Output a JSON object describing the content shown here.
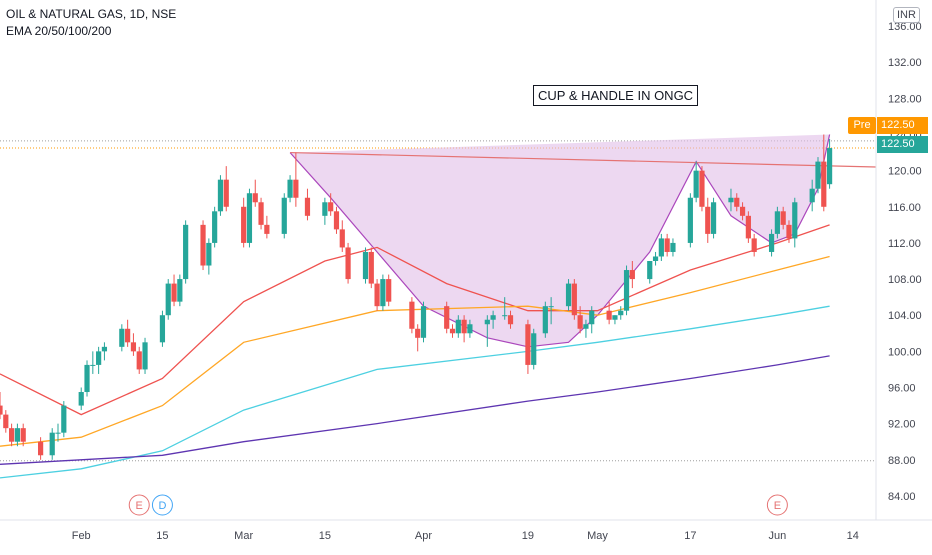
{
  "header": {
    "symbol_line": "OIL & NATURAL GAS, 1D, NSE",
    "indicator_line": "EMA 20/50/100/200"
  },
  "currency": "INR",
  "annotation": "CUP & HANDLE IN ONGC",
  "price_tags": {
    "pre_label": "Pre",
    "pre_price": "122.50",
    "last_price": "122.50"
  },
  "events": [
    {
      "label": "E",
      "date": "2021-02-11",
      "color": "#e57373"
    },
    {
      "label": "D",
      "date": "2021-02-15",
      "color": "#42a5f5"
    },
    {
      "label": "E",
      "date": "2021-06-01",
      "color": "#e57373"
    }
  ],
  "colors": {
    "up": "#26a69a",
    "down": "#ef5350",
    "ema20": "#ef5350",
    "ema50": "#ffa726",
    "ema100": "#4dd0e1",
    "ema200": "#5e35b1",
    "cup_fill": "#e1bee7",
    "cup_line": "#ab47bc",
    "neckline": "#e57373",
    "pre": "#ff9800",
    "last": "#26a69a"
  },
  "chart_data": {
    "type": "candlestick",
    "y_axis": {
      "range": [
        82,
        138
      ],
      "ticks": [
        "84.00",
        "88.00",
        "92.00",
        "96.00",
        "100.00",
        "104.00",
        "108.00",
        "112.00",
        "116.00",
        "120.00",
        "124.00",
        "128.00",
        "132.00",
        "136.00"
      ]
    },
    "x_axis": {
      "start": "2021-01-18",
      "end": "2021-06-18",
      "ticks": [
        {
          "label": "Feb",
          "date": "2021-02-01"
        },
        {
          "label": "15",
          "date": "2021-02-15"
        },
        {
          "label": "Mar",
          "date": "2021-03-01"
        },
        {
          "label": "15",
          "date": "2021-03-15"
        },
        {
          "label": "Apr",
          "date": "2021-04-01"
        },
        {
          "label": "19",
          "date": "2021-04-19"
        },
        {
          "label": "May",
          "date": "2021-05-01"
        },
        {
          "label": "17",
          "date": "2021-05-17"
        },
        {
          "label": "Jun",
          "date": "2021-06-01"
        },
        {
          "label": "14",
          "date": "2021-06-14"
        }
      ]
    },
    "grid": false,
    "candles": [
      [
        "2021-01-18",
        94,
        95.5,
        92.5,
        93
      ],
      [
        "2021-01-19",
        93,
        93.5,
        91,
        91.5
      ],
      [
        "2021-01-20",
        91.5,
        92,
        89.5,
        90
      ],
      [
        "2021-01-21",
        90,
        92,
        89.5,
        91.5
      ],
      [
        "2021-01-22",
        91.5,
        92,
        89.5,
        90
      ],
      [
        "2021-01-25",
        90,
        90.5,
        88,
        88.5
      ],
      [
        "2021-01-27",
        88.5,
        91.5,
        88,
        91
      ],
      [
        "2021-01-28",
        91,
        92,
        90,
        91
      ],
      [
        "2021-01-29",
        91,
        94.5,
        90.5,
        94
      ],
      [
        "2021-02-01",
        94,
        96,
        93.5,
        95.5
      ],
      [
        "2021-02-02",
        95.5,
        99,
        95,
        98.5
      ],
      [
        "2021-02-03",
        98.5,
        100,
        97.5,
        98.5
      ],
      [
        "2021-02-04",
        98.5,
        100.5,
        97.5,
        100
      ],
      [
        "2021-02-05",
        100,
        101,
        99,
        100.5
      ],
      [
        "2021-02-08",
        100.5,
        103,
        100,
        102.5
      ],
      [
        "2021-02-09",
        102.5,
        103.5,
        100.5,
        101
      ],
      [
        "2021-02-10",
        101,
        102,
        99.5,
        100
      ],
      [
        "2021-02-11",
        100,
        100.5,
        97.5,
        98
      ],
      [
        "2021-02-12",
        98,
        101.5,
        97.5,
        101
      ],
      [
        "2021-02-15",
        101,
        104.5,
        100.5,
        104
      ],
      [
        "2021-02-16",
        104,
        108,
        103.5,
        107.5
      ],
      [
        "2021-02-17",
        107.5,
        108.5,
        105,
        105.5
      ],
      [
        "2021-02-18",
        105.5,
        108.5,
        105,
        108
      ],
      [
        "2021-02-19",
        108,
        114.5,
        107.5,
        114
      ],
      [
        "2021-02-22",
        114,
        114.5,
        109,
        109.5
      ],
      [
        "2021-02-23",
        109.5,
        112.5,
        108.5,
        112
      ],
      [
        "2021-02-24",
        112,
        116,
        111.5,
        115.5
      ],
      [
        "2021-02-25",
        115.5,
        119.5,
        115,
        119
      ],
      [
        "2021-02-26",
        119,
        120.5,
        115.5,
        116
      ],
      [
        "2021-03-01",
        116,
        117,
        111.5,
        112
      ],
      [
        "2021-03-02",
        112,
        118,
        111.5,
        117.5
      ],
      [
        "2021-03-03",
        117.5,
        119,
        116,
        116.5
      ],
      [
        "2021-03-04",
        116.5,
        117,
        113.5,
        114
      ],
      [
        "2021-03-05",
        114,
        115,
        112.5,
        113
      ],
      [
        "2021-03-08",
        113,
        117.5,
        112.5,
        117
      ],
      [
        "2021-03-09",
        117,
        119.5,
        116.5,
        119
      ],
      [
        "2021-03-10",
        119,
        122,
        116,
        117
      ],
      [
        "2021-03-12",
        117,
        118,
        114.5,
        115
      ],
      [
        "2021-03-15",
        115,
        117,
        114,
        116.5
      ],
      [
        "2021-03-16",
        116.5,
        117.5,
        115,
        115.5
      ],
      [
        "2021-03-17",
        115.5,
        116,
        113,
        113.5
      ],
      [
        "2021-03-18",
        113.5,
        114.5,
        111,
        111.5
      ],
      [
        "2021-03-19",
        111.5,
        112,
        107.5,
        108
      ],
      [
        "2021-03-22",
        108,
        111.5,
        107.5,
        111
      ],
      [
        "2021-03-23",
        111,
        111.5,
        107,
        107.5
      ],
      [
        "2021-03-24",
        107.5,
        108,
        104.5,
        105
      ],
      [
        "2021-03-25",
        105,
        108.5,
        104.5,
        108
      ],
      [
        "2021-03-26",
        108,
        108.5,
        105,
        105.5
      ],
      [
        "2021-03-30",
        105.5,
        106,
        102,
        102.5
      ],
      [
        "2021-03-31",
        102.5,
        103,
        100,
        101.5
      ],
      [
        "2021-04-01",
        101.5,
        105.5,
        101,
        105
      ],
      [
        "2021-04-05",
        105,
        105.5,
        102,
        102.5
      ],
      [
        "2021-04-06",
        102.5,
        103,
        101.5,
        102
      ],
      [
        "2021-04-07",
        102,
        104,
        101.5,
        103.5
      ],
      [
        "2021-04-08",
        103.5,
        104,
        101,
        102
      ],
      [
        "2021-04-09",
        102,
        103.5,
        101.5,
        103
      ],
      [
        "2021-04-12",
        103,
        104,
        100.5,
        103.5
      ],
      [
        "2021-04-13",
        103.5,
        104.5,
        102.5,
        104
      ],
      [
        "2021-04-15",
        104,
        106,
        103.5,
        104
      ],
      [
        "2021-04-16",
        104,
        104.5,
        102.5,
        103
      ],
      [
        "2021-04-19",
        103,
        103.5,
        97.5,
        98.5
      ],
      [
        "2021-04-20",
        98.5,
        102.5,
        98,
        102
      ],
      [
        "2021-04-22",
        102,
        105.5,
        101.5,
        105
      ],
      [
        "2021-04-23",
        105,
        106,
        103,
        105
      ],
      [
        "2021-04-26",
        105,
        108,
        104.5,
        107.5
      ],
      [
        "2021-04-27",
        107.5,
        108,
        103.5,
        104
      ],
      [
        "2021-04-28",
        104,
        105,
        102,
        102.5
      ],
      [
        "2021-04-29",
        102.5,
        103.5,
        101.5,
        103
      ],
      [
        "2021-04-30",
        103,
        105,
        102,
        104.5
      ],
      [
        "2021-05-03",
        104.5,
        105.5,
        103,
        103.5
      ],
      [
        "2021-05-04",
        103.5,
        104,
        103,
        104
      ],
      [
        "2021-05-05",
        104,
        105,
        103.5,
        104.5
      ],
      [
        "2021-05-06",
        104.5,
        109.5,
        104,
        109
      ],
      [
        "2021-05-07",
        109,
        110,
        107,
        108
      ],
      [
        "2021-05-10",
        108,
        110,
        107.5,
        110
      ],
      [
        "2021-05-11",
        110,
        111,
        109.5,
        110.5
      ],
      [
        "2021-05-12",
        110.5,
        113,
        110,
        112.5
      ],
      [
        "2021-05-13",
        112.5,
        113,
        110.5,
        111
      ],
      [
        "2021-05-14",
        111,
        112.5,
        110.5,
        112
      ],
      [
        "2021-05-17",
        112,
        117.5,
        111.5,
        117
      ],
      [
        "2021-05-18",
        117,
        121,
        116.5,
        120
      ],
      [
        "2021-05-19",
        120,
        120.5,
        115.5,
        116
      ],
      [
        "2021-05-20",
        116,
        117,
        112,
        113
      ],
      [
        "2021-05-21",
        113,
        117,
        112.5,
        116.5
      ],
      [
        "2021-05-24",
        116.5,
        118,
        115.5,
        117
      ],
      [
        "2021-05-25",
        117,
        117.5,
        115.5,
        116
      ],
      [
        "2021-05-26",
        116,
        116.5,
        114.5,
        115
      ],
      [
        "2021-05-27",
        115,
        115.5,
        112,
        112.5
      ],
      [
        "2021-05-28",
        112.5,
        113,
        110.5,
        111
      ],
      [
        "2021-05-31",
        111,
        113.5,
        110.5,
        113
      ],
      [
        "2021-06-01",
        113,
        116,
        112.5,
        115.5
      ],
      [
        "2021-06-02",
        115.5,
        116,
        113.5,
        114
      ],
      [
        "2021-06-03",
        114,
        114.5,
        112,
        112.5
      ],
      [
        "2021-06-04",
        112.5,
        117,
        111.5,
        116.5
      ],
      [
        "2021-06-07",
        116.5,
        119,
        115.5,
        118
      ],
      [
        "2021-06-08",
        118,
        121.5,
        117.5,
        121
      ],
      [
        "2021-06-09",
        121,
        124,
        115.5,
        116
      ],
      [
        "2021-06-10",
        118.5,
        123.5,
        118,
        122.5
      ]
    ],
    "ema": [
      {
        "name": "EMA 20",
        "points": [
          [
            "2021-01-18",
            97.5
          ],
          [
            "2021-02-01",
            93
          ],
          [
            "2021-02-15",
            97
          ],
          [
            "2021-03-01",
            105.5
          ],
          [
            "2021-03-15",
            110
          ],
          [
            "2021-03-24",
            111.5
          ],
          [
            "2021-04-05",
            107.5
          ],
          [
            "2021-04-19",
            104.5
          ],
          [
            "2021-05-01",
            104.5
          ],
          [
            "2021-05-17",
            109
          ],
          [
            "2021-06-01",
            112
          ],
          [
            "2021-06-10",
            114
          ]
        ]
      },
      {
        "name": "EMA 50",
        "points": [
          [
            "2021-01-18",
            89.5
          ],
          [
            "2021-02-01",
            90.5
          ],
          [
            "2021-02-15",
            94
          ],
          [
            "2021-03-01",
            101
          ],
          [
            "2021-03-24",
            104.5
          ],
          [
            "2021-04-19",
            105
          ],
          [
            "2021-05-01",
            104
          ],
          [
            "2021-05-17",
            106.5
          ],
          [
            "2021-06-01",
            109
          ],
          [
            "2021-06-10",
            110.5
          ]
        ]
      },
      {
        "name": "EMA 100",
        "points": [
          [
            "2021-01-18",
            86
          ],
          [
            "2021-02-01",
            87
          ],
          [
            "2021-02-15",
            89
          ],
          [
            "2021-03-01",
            93.5
          ],
          [
            "2021-03-24",
            98
          ],
          [
            "2021-04-19",
            100
          ],
          [
            "2021-05-01",
            101
          ],
          [
            "2021-05-17",
            102.5
          ],
          [
            "2021-06-01",
            104
          ],
          [
            "2021-06-10",
            105
          ]
        ]
      },
      {
        "name": "EMA 200",
        "points": [
          [
            "2021-01-18",
            87.5
          ],
          [
            "2021-02-15",
            88.5
          ],
          [
            "2021-03-01",
            90
          ],
          [
            "2021-03-24",
            92
          ],
          [
            "2021-04-19",
            94.5
          ],
          [
            "2021-05-01",
            95.5
          ],
          [
            "2021-05-17",
            97
          ],
          [
            "2021-06-01",
            98.5
          ],
          [
            "2021-06-10",
            99.5
          ]
        ]
      }
    ],
    "cup": {
      "points": [
        [
          "2021-03-09",
          122
        ],
        [
          "2021-03-16",
          117
        ],
        [
          "2021-03-24",
          111
        ],
        [
          "2021-04-01",
          105
        ],
        [
          "2021-04-12",
          101.5
        ],
        [
          "2021-04-19",
          100.5
        ],
        [
          "2021-04-26",
          101
        ],
        [
          "2021-05-01",
          104
        ],
        [
          "2021-05-10",
          111
        ],
        [
          "2021-05-18",
          121
        ],
        [
          "2021-05-24",
          115
        ],
        [
          "2021-05-31",
          112
        ],
        [
          "2021-06-04",
          113
        ],
        [
          "2021-06-08",
          118
        ],
        [
          "2021-06-10",
          124
        ]
      ]
    },
    "neckline": {
      "from": [
        "2021-03-09",
        122
      ],
      "to": [
        "2021-06-18",
        120.4
      ]
    },
    "reference_lines": [
      122.5,
      123.3,
      87.9
    ]
  }
}
